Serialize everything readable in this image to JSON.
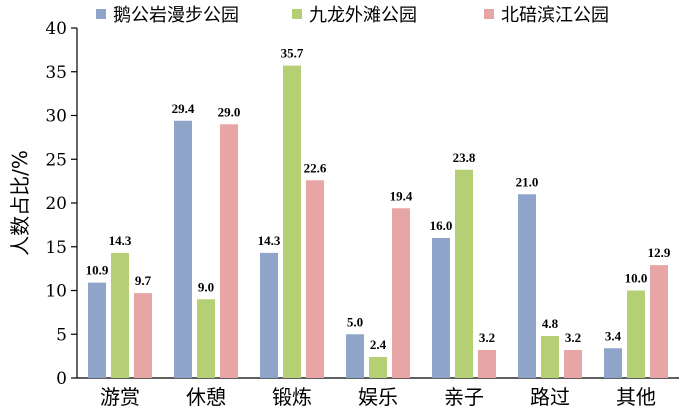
{
  "chart_data": {
    "type": "bar",
    "title": "",
    "xlabel": "",
    "ylabel": "人数占比/%",
    "ylim": [
      0,
      40
    ],
    "yticks": [
      0,
      5,
      10,
      15,
      20,
      25,
      30,
      35,
      40
    ],
    "grid": false,
    "legend_position": "top",
    "categories": [
      "游赏",
      "休憩",
      "锻炼",
      "娱乐",
      "亲子",
      "路过",
      "其他"
    ],
    "series": [
      {
        "name": "鹅公岩漫步公园",
        "color": "#8EA5C9",
        "values": [
          10.9,
          29.4,
          14.3,
          5.0,
          16.0,
          21.0,
          3.4
        ]
      },
      {
        "name": "九龙外滩公园",
        "color": "#B4CF74",
        "values": [
          14.3,
          9.0,
          35.7,
          2.4,
          23.8,
          4.8,
          10.0
        ]
      },
      {
        "name": "北碚滨江公园",
        "color": "#E8A5A5",
        "values": [
          9.7,
          29.0,
          22.6,
          19.4,
          3.2,
          3.2,
          12.9
        ]
      }
    ]
  }
}
